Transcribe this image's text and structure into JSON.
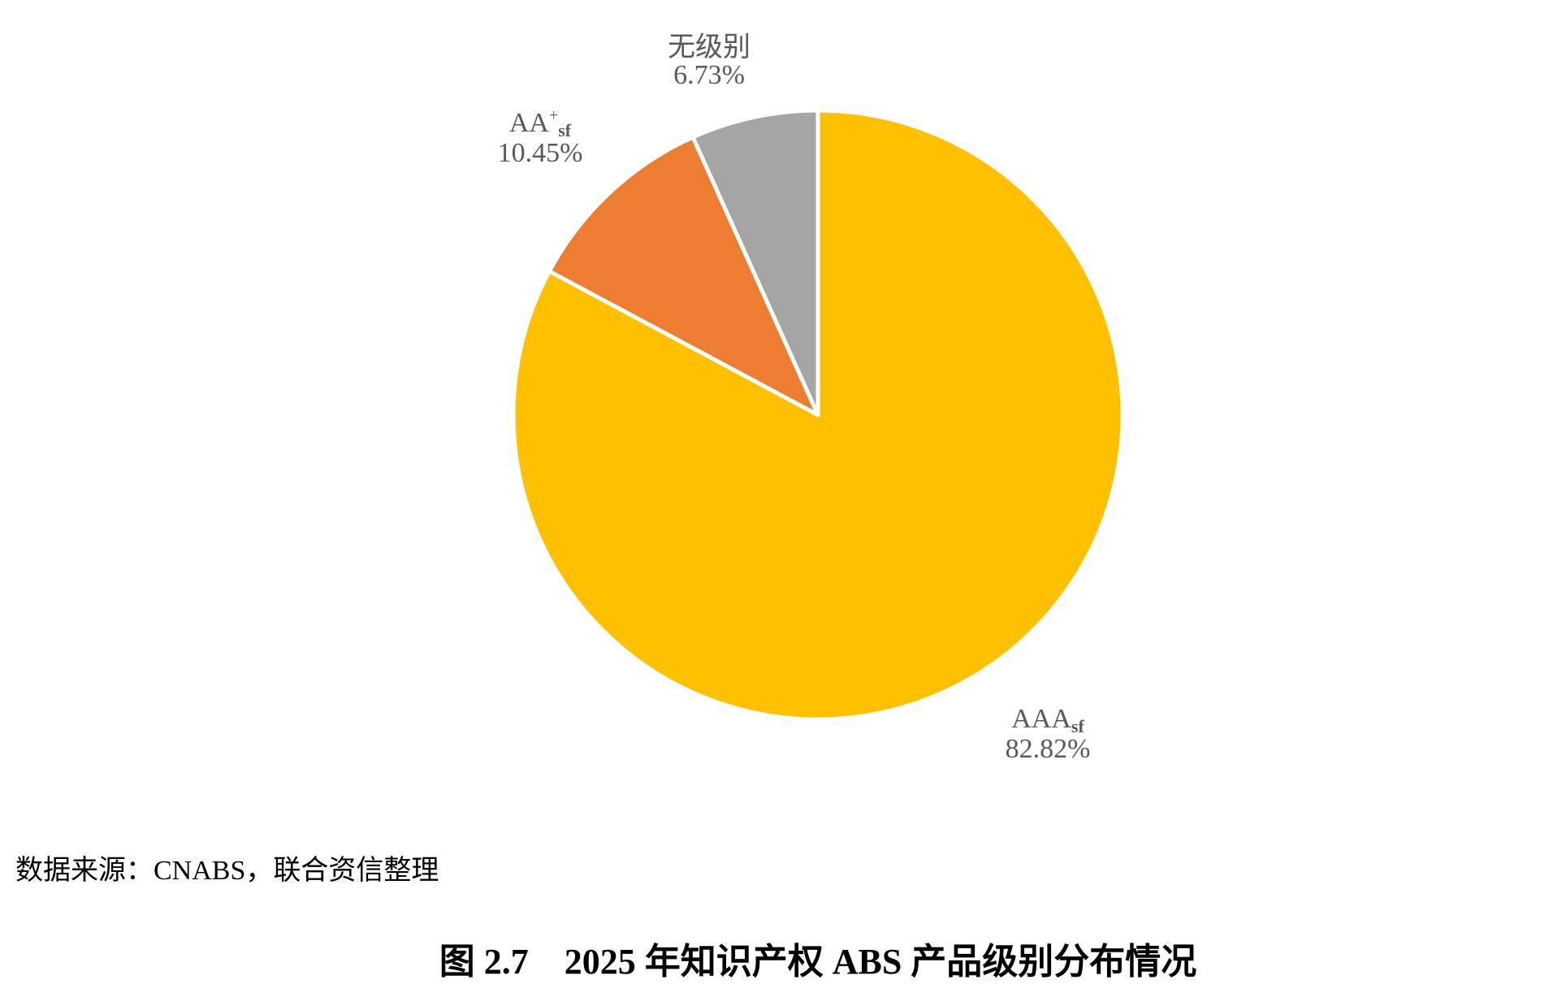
{
  "chart_data": {
    "type": "pie",
    "title": "图 2.7　2025 年知识产权 ABS 产品级别分布情况",
    "source": "数据来源：CNABS，联合资信整理",
    "start_angle": "12 o'clock",
    "direction": "clockwise",
    "slices": [
      {
        "label": "AAA",
        "label_sub": "sf",
        "label_sup": "",
        "value": 82.82,
        "value_label": "82.82%",
        "color": "#FFC000"
      },
      {
        "label": "AA",
        "label_sub": "sf",
        "label_sup": "+",
        "value": 10.45,
        "value_label": "10.45%",
        "color": "#ED7D31"
      },
      {
        "label": "无级别",
        "label_sub": "",
        "label_sup": "",
        "value": 6.73,
        "value_label": "6.73%",
        "color": "#A5A5A5"
      }
    ]
  }
}
